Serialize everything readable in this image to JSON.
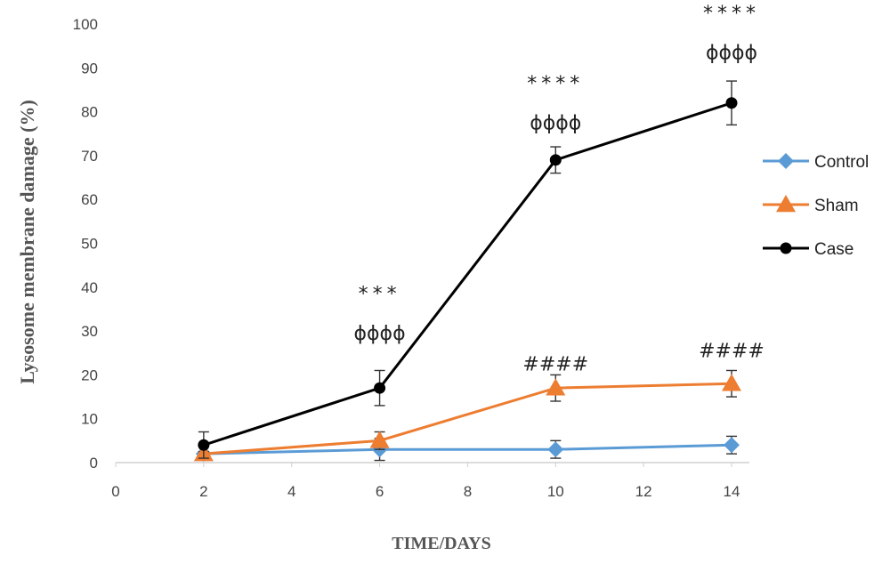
{
  "chart_data": {
    "type": "line",
    "title": "",
    "xlabel": "TIME/DAYS",
    "ylabel": "Lysosome membrane damage (%)",
    "xlim": [
      0,
      14
    ],
    "ylim": [
      0,
      100
    ],
    "xticks": [
      0,
      2,
      4,
      6,
      8,
      10,
      12,
      14
    ],
    "yticks": [
      0,
      10,
      20,
      30,
      40,
      50,
      60,
      70,
      80,
      90,
      100
    ],
    "grid": false,
    "legend_position": "right",
    "x": [
      2,
      6,
      10,
      14
    ],
    "series": [
      {
        "name": "Control",
        "color": "#5b9bd5",
        "marker": "diamond",
        "values": [
          2,
          3,
          3,
          4
        ],
        "errors": [
          0.5,
          2.5,
          2,
          2
        ]
      },
      {
        "name": "Sham",
        "color": "#ed7d31",
        "marker": "triangle",
        "values": [
          2,
          5,
          17,
          18
        ],
        "errors": [
          0.5,
          2,
          3,
          3
        ]
      },
      {
        "name": "Case",
        "color": "#000000",
        "marker": "circle",
        "values": [
          4,
          17,
          69,
          82
        ],
        "errors": [
          3,
          4,
          3,
          5
        ]
      }
    ],
    "annotations": [
      {
        "text": "***",
        "x": 6,
        "y": 37
      },
      {
        "text": "ɸɸɸɸ",
        "x": 6,
        "y": 28
      },
      {
        "text": "****",
        "x": 10,
        "y": 85
      },
      {
        "text": "ɸɸɸɸ",
        "x": 10,
        "y": 76
      },
      {
        "text": "####",
        "x": 10,
        "y": 21
      },
      {
        "text": "****",
        "x": 14,
        "y": 101
      },
      {
        "text": "ɸɸɸɸ",
        "x": 14,
        "y": 92
      },
      {
        "text": "####",
        "x": 14,
        "y": 24
      }
    ]
  }
}
